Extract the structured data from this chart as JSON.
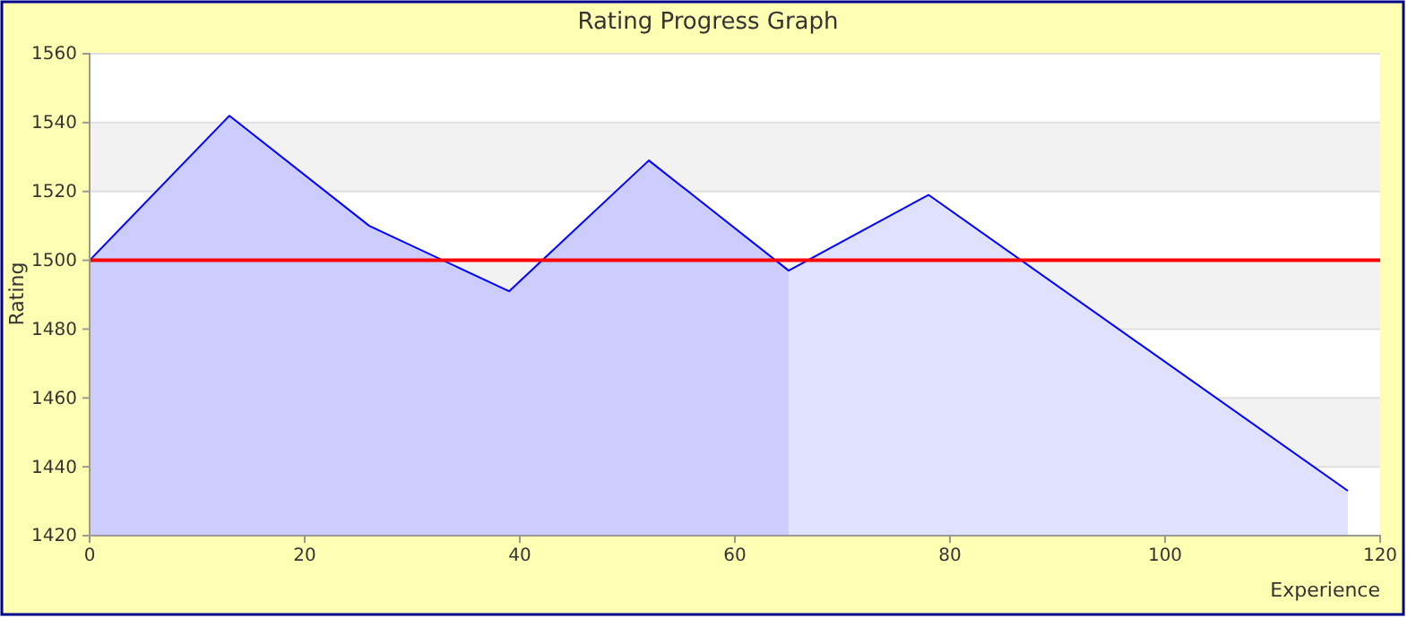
{
  "chart_data": {
    "type": "area",
    "title": "Rating Progress Graph",
    "xlabel": "Experience",
    "ylabel": "Rating",
    "xlim": [
      0,
      120
    ],
    "xticks": [
      0,
      20,
      40,
      60,
      80,
      100,
      120
    ],
    "ylim": [
      1420,
      1560
    ],
    "yticks": [
      1420,
      1440,
      1460,
      1480,
      1500,
      1520,
      1540,
      1560
    ],
    "grid": "y",
    "series": [
      {
        "color": "#ccccff",
        "x": [
          0,
          13,
          26,
          39,
          52,
          65
        ],
        "values": [
          1500,
          1542,
          1510,
          1491,
          1529,
          1497
        ]
      },
      {
        "color": "#e0e0ff",
        "x": [
          65,
          78,
          117
        ],
        "values": [
          1497,
          1519,
          1433
        ]
      },
      {
        "type": "line",
        "color": "#0000ff",
        "x": [
          0,
          13,
          26,
          39,
          52,
          65,
          78,
          117
        ],
        "values": [
          1500,
          1542,
          1510,
          1491,
          1529,
          1497,
          1519,
          1433
        ]
      }
    ],
    "ref_lines": [
      {
        "axis": "y",
        "value": 1500,
        "color": "#ff0000"
      }
    ]
  }
}
